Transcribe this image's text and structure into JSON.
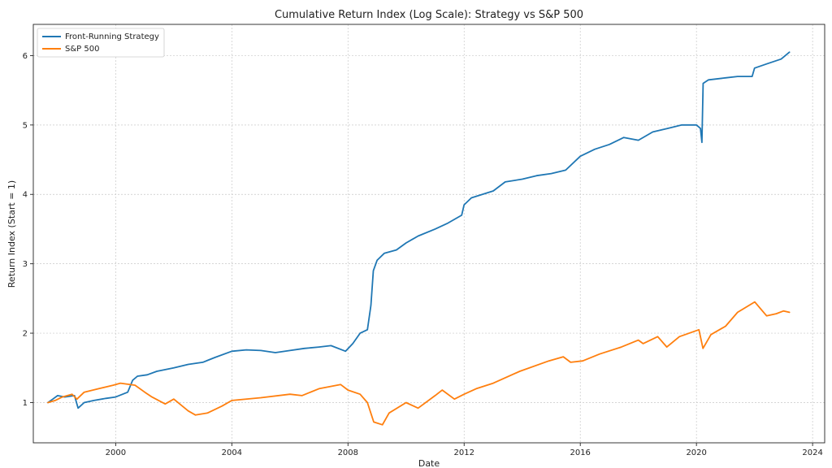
{
  "chart_data": {
    "type": "line",
    "title": "Cumulative Return Index (Log Scale): Strategy vs S&P 500",
    "xlabel": "Date",
    "ylabel": "Return Index (Start = 1)",
    "x_range": [
      "1997-03-01",
      "2024-06-01"
    ],
    "y_range": [
      0.42,
      6.45
    ],
    "x_ticks": [
      {
        "date": "2000-01-01",
        "label": "2000"
      },
      {
        "date": "2004-01-01",
        "label": "2004"
      },
      {
        "date": "2008-01-01",
        "label": "2008"
      },
      {
        "date": "2012-01-01",
        "label": "2012"
      },
      {
        "date": "2016-01-01",
        "label": "2016"
      },
      {
        "date": "2020-01-01",
        "label": "2020"
      },
      {
        "date": "2024-01-01",
        "label": "2024"
      }
    ],
    "y_ticks": [
      {
        "value": 1,
        "label": "1"
      },
      {
        "value": 2,
        "label": "2"
      },
      {
        "value": 3,
        "label": "3"
      },
      {
        "value": 4,
        "label": "4"
      },
      {
        "value": 5,
        "label": "5"
      },
      {
        "value": 6,
        "label": "6"
      }
    ],
    "grid": true,
    "legend_position": "top-left",
    "series": [
      {
        "name": "Front-Running Strategy",
        "color": "#1f77b4",
        "points": [
          [
            "1997-09-01",
            1.0
          ],
          [
            "1997-11-01",
            1.05
          ],
          [
            "1998-01-01",
            1.1
          ],
          [
            "1998-04-01",
            1.08
          ],
          [
            "1998-08-01",
            1.1
          ],
          [
            "1998-09-15",
            0.92
          ],
          [
            "1998-12-01",
            1.0
          ],
          [
            "1999-04-01",
            1.03
          ],
          [
            "1999-09-01",
            1.06
          ],
          [
            "2000-01-01",
            1.08
          ],
          [
            "2000-06-01",
            1.15
          ],
          [
            "2000-08-01",
            1.32
          ],
          [
            "2000-10-01",
            1.38
          ],
          [
            "2001-02-01",
            1.4
          ],
          [
            "2001-06-01",
            1.45
          ],
          [
            "2002-01-01",
            1.5
          ],
          [
            "2002-07-01",
            1.55
          ],
          [
            "2003-01-01",
            1.58
          ],
          [
            "2003-06-01",
            1.65
          ],
          [
            "2004-01-01",
            1.74
          ],
          [
            "2004-07-01",
            1.76
          ],
          [
            "2005-01-01",
            1.75
          ],
          [
            "2005-07-01",
            1.72
          ],
          [
            "2006-01-01",
            1.75
          ],
          [
            "2006-07-01",
            1.78
          ],
          [
            "2007-01-01",
            1.8
          ],
          [
            "2007-06-01",
            1.82
          ],
          [
            "2007-12-01",
            1.74
          ],
          [
            "2008-03-01",
            1.85
          ],
          [
            "2008-06-01",
            2.0
          ],
          [
            "2008-09-01",
            2.05
          ],
          [
            "2008-10-15",
            2.4
          ],
          [
            "2008-11-15",
            2.9
          ],
          [
            "2009-01-01",
            3.05
          ],
          [
            "2009-04-01",
            3.15
          ],
          [
            "2009-09-01",
            3.2
          ],
          [
            "2010-01-01",
            3.3
          ],
          [
            "2010-06-01",
            3.4
          ],
          [
            "2011-01-01",
            3.5
          ],
          [
            "2011-06-01",
            3.58
          ],
          [
            "2011-12-01",
            3.7
          ],
          [
            "2012-01-01",
            3.85
          ],
          [
            "2012-04-01",
            3.95
          ],
          [
            "2013-01-01",
            4.05
          ],
          [
            "2013-06-01",
            4.18
          ],
          [
            "2014-01-01",
            4.22
          ],
          [
            "2014-07-01",
            4.27
          ],
          [
            "2015-01-01",
            4.3
          ],
          [
            "2015-07-01",
            4.35
          ],
          [
            "2016-01-01",
            4.55
          ],
          [
            "2016-07-01",
            4.65
          ],
          [
            "2017-01-01",
            4.72
          ],
          [
            "2017-07-01",
            4.82
          ],
          [
            "2018-01-01",
            4.78
          ],
          [
            "2018-07-01",
            4.9
          ],
          [
            "2019-01-01",
            4.95
          ],
          [
            "2019-07-01",
            5.0
          ],
          [
            "2020-01-01",
            5.0
          ],
          [
            "2020-02-20",
            4.95
          ],
          [
            "2020-03-10",
            4.75
          ],
          [
            "2020-03-25",
            5.6
          ],
          [
            "2020-06-01",
            5.65
          ],
          [
            "2021-01-01",
            5.68
          ],
          [
            "2021-06-01",
            5.7
          ],
          [
            "2021-12-01",
            5.7
          ],
          [
            "2022-01-01",
            5.82
          ],
          [
            "2022-06-01",
            5.88
          ],
          [
            "2022-12-01",
            5.95
          ],
          [
            "2023-03-15",
            6.05
          ]
        ]
      },
      {
        "name": "S&P 500",
        "color": "#ff7f0e",
        "points": [
          [
            "1997-09-01",
            1.0
          ],
          [
            "1997-12-01",
            1.03
          ],
          [
            "1998-03-01",
            1.08
          ],
          [
            "1998-07-01",
            1.12
          ],
          [
            "1998-09-01",
            1.05
          ],
          [
            "1998-12-01",
            1.15
          ],
          [
            "1999-06-01",
            1.2
          ],
          [
            "1999-12-01",
            1.25
          ],
          [
            "2000-03-01",
            1.28
          ],
          [
            "2000-09-01",
            1.25
          ],
          [
            "2001-01-01",
            1.15
          ],
          [
            "2001-04-01",
            1.08
          ],
          [
            "2001-09-15",
            0.98
          ],
          [
            "2002-01-01",
            1.05
          ],
          [
            "2002-07-01",
            0.88
          ],
          [
            "2002-10-01",
            0.82
          ],
          [
            "2003-03-01",
            0.85
          ],
          [
            "2003-09-01",
            0.95
          ],
          [
            "2004-01-01",
            1.03
          ],
          [
            "2005-01-01",
            1.07
          ],
          [
            "2006-01-01",
            1.12
          ],
          [
            "2006-06-01",
            1.1
          ],
          [
            "2007-01-01",
            1.2
          ],
          [
            "2007-10-01",
            1.26
          ],
          [
            "2008-01-01",
            1.18
          ],
          [
            "2008-06-01",
            1.12
          ],
          [
            "2008-09-01",
            1.0
          ],
          [
            "2008-11-20",
            0.72
          ],
          [
            "2009-03-09",
            0.68
          ],
          [
            "2009-06-01",
            0.85
          ],
          [
            "2010-01-01",
            1.0
          ],
          [
            "2010-06-01",
            0.92
          ],
          [
            "2011-01-01",
            1.1
          ],
          [
            "2011-04-01",
            1.18
          ],
          [
            "2011-09-01",
            1.05
          ],
          [
            "2012-01-01",
            1.12
          ],
          [
            "2012-06-01",
            1.2
          ],
          [
            "2013-01-01",
            1.28
          ],
          [
            "2013-12-01",
            1.45
          ],
          [
            "2014-12-01",
            1.6
          ],
          [
            "2015-06-01",
            1.66
          ],
          [
            "2015-09-01",
            1.58
          ],
          [
            "2016-02-01",
            1.6
          ],
          [
            "2016-09-01",
            1.7
          ],
          [
            "2017-06-01",
            1.8
          ],
          [
            "2018-01-01",
            1.9
          ],
          [
            "2018-03-01",
            1.85
          ],
          [
            "2018-09-01",
            1.95
          ],
          [
            "2018-12-24",
            1.8
          ],
          [
            "2019-06-01",
            1.95
          ],
          [
            "2020-02-01",
            2.05
          ],
          [
            "2020-03-23",
            1.78
          ],
          [
            "2020-07-01",
            1.98
          ],
          [
            "2021-01-01",
            2.1
          ],
          [
            "2021-06-01",
            2.3
          ],
          [
            "2022-01-03",
            2.45
          ],
          [
            "2022-06-01",
            2.25
          ],
          [
            "2022-10-01",
            2.28
          ],
          [
            "2023-01-01",
            2.32
          ],
          [
            "2023-03-15",
            2.3
          ]
        ]
      }
    ]
  }
}
